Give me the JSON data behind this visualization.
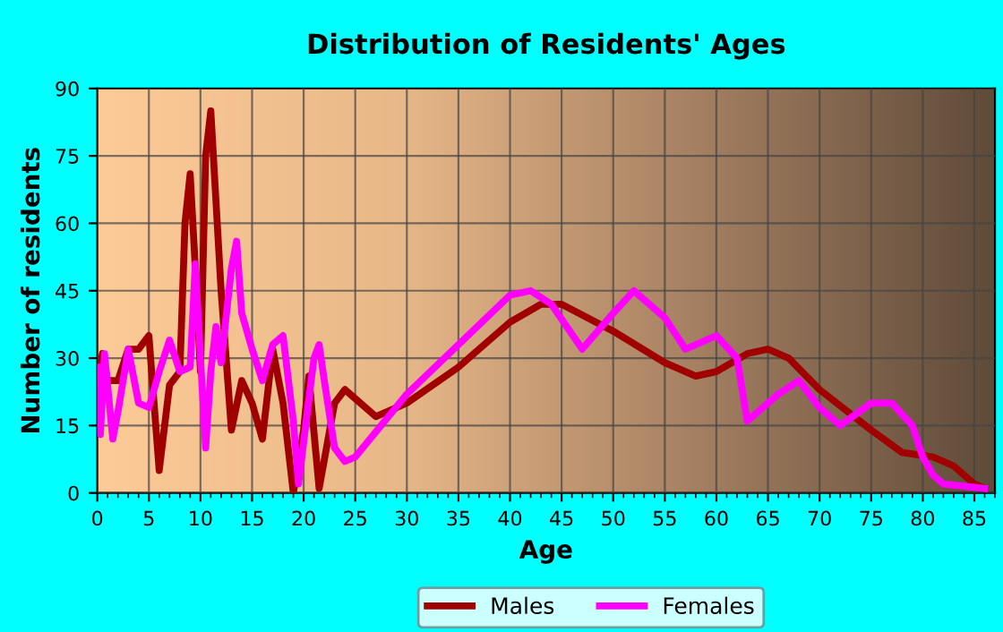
{
  "chart_data": {
    "type": "line",
    "title": "Distribution of Residents' Ages",
    "xlabel": "Age",
    "ylabel": "Number of residents",
    "xlim": [
      0,
      87
    ],
    "xticks": [
      0,
      5,
      10,
      15,
      20,
      25,
      30,
      35,
      40,
      45,
      50,
      55,
      60,
      65,
      70,
      75,
      80,
      85
    ],
    "ylim": [
      0,
      90
    ],
    "yticks": [
      0,
      15,
      30,
      45,
      60,
      75,
      90
    ],
    "grid": true,
    "legend": "bottom",
    "marker": "none",
    "line_style": "solid",
    "series": [
      {
        "name": "Males",
        "color": "#a00000",
        "x": [
          0,
          0.5,
          1,
          2,
          3,
          4,
          5,
          6,
          7,
          8,
          8.5,
          9,
          9.5,
          10,
          10.5,
          11,
          12,
          13,
          14,
          15,
          16,
          17,
          18,
          19,
          20,
          20.5,
          21.5,
          23,
          24,
          25,
          27,
          30,
          35,
          40,
          43,
          45,
          50,
          55,
          58,
          60,
          63,
          65,
          67,
          70,
          75,
          78,
          81,
          83,
          85,
          86
        ],
        "values": [
          25,
          31,
          25,
          25,
          32,
          32,
          35,
          5,
          24,
          27,
          60,
          71,
          50,
          27,
          75,
          85,
          45,
          14,
          25,
          20,
          12,
          32,
          20,
          0,
          14,
          26,
          1,
          20,
          23,
          21,
          17,
          20,
          28,
          38,
          42,
          42,
          36,
          29,
          26,
          27,
          31,
          32,
          30,
          23,
          14,
          9,
          8,
          6,
          2,
          1
        ]
      },
      {
        "name": "Females",
        "color": "#ff00ff",
        "x": [
          0,
          0.3,
          0.7,
          1.5,
          2,
          3,
          4,
          5,
          6,
          7,
          8,
          9,
          9.5,
          10,
          10.5,
          11,
          11.5,
          12,
          13,
          13.5,
          14,
          15,
          16,
          17,
          18,
          19,
          19.5,
          21,
          21.5,
          22,
          23,
          24,
          25,
          30,
          35,
          40,
          42,
          44,
          47,
          50,
          52,
          55,
          57,
          60,
          62,
          63,
          66,
          68,
          70,
          72,
          75,
          77,
          79,
          80,
          81,
          82,
          86
        ],
        "values": [
          28,
          13,
          31,
          12,
          18,
          32,
          20,
          19,
          27,
          34,
          27,
          28,
          51,
          30,
          10,
          27,
          37,
          29,
          50,
          56,
          40,
          32,
          25,
          33,
          35,
          16,
          2,
          30,
          33,
          25,
          10,
          7,
          8,
          22,
          33,
          44,
          45,
          42,
          32,
          40,
          45,
          39,
          32,
          35,
          30,
          16,
          22,
          25,
          19,
          15,
          20,
          20,
          15,
          8,
          4,
          2,
          1
        ]
      }
    ]
  }
}
